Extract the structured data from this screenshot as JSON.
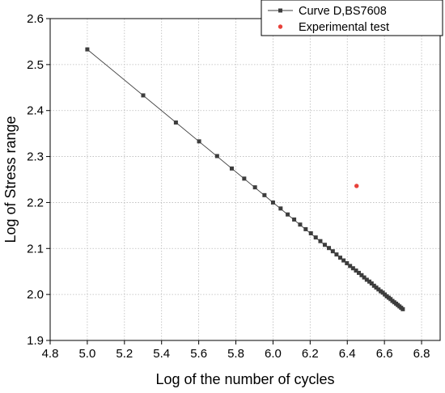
{
  "chart_data": {
    "type": "scatter",
    "xlabel": "Log of the number of cycles",
    "ylabel": "Log of Stress range",
    "xlim": [
      4.8,
      6.9
    ],
    "ylim": [
      1.9,
      2.6
    ],
    "xticks": [
      "4.8",
      "5.0",
      "5.2",
      "5.4",
      "5.6",
      "5.8",
      "6.0",
      "6.2",
      "6.4",
      "6.6",
      "6.8"
    ],
    "yticks": [
      "1.9",
      "2.0",
      "2.1",
      "2.2",
      "2.3",
      "2.4",
      "2.5",
      "2.6"
    ],
    "grid": true,
    "legend_position": "top-right",
    "series": [
      {
        "name": "Curve D,BS7608",
        "style": "line-with-square-markers",
        "color": "#3d3d3d",
        "line_from": [
          5.0,
          2.533
        ],
        "line_to": [
          6.7,
          1.967
        ],
        "x": [
          5.0,
          5.301,
          5.477,
          5.602,
          5.699,
          5.778,
          5.845,
          5.903,
          5.954,
          6.0,
          6.041,
          6.079,
          6.114,
          6.146,
          6.176,
          6.204,
          6.23,
          6.255,
          6.279,
          6.301,
          6.322,
          6.342,
          6.362,
          6.38,
          6.398,
          6.415,
          6.431,
          6.447,
          6.462,
          6.477,
          6.491,
          6.505,
          6.519,
          6.531,
          6.544,
          6.556,
          6.568,
          6.58,
          6.591,
          6.602,
          6.613,
          6.623,
          6.633,
          6.643,
          6.653,
          6.663,
          6.672,
          6.681,
          6.69,
          6.699
        ],
        "y": [
          2.533,
          2.433,
          2.374,
          2.333,
          2.301,
          2.274,
          2.252,
          2.233,
          2.216,
          2.2,
          2.187,
          2.174,
          2.163,
          2.152,
          2.142,
          2.133,
          2.124,
          2.116,
          2.108,
          2.101,
          2.094,
          2.087,
          2.08,
          2.074,
          2.068,
          2.062,
          2.057,
          2.052,
          2.047,
          2.042,
          2.037,
          2.032,
          2.028,
          2.024,
          2.019,
          2.015,
          2.011,
          2.007,
          2.004,
          2.0,
          1.996,
          1.993,
          1.99,
          1.986,
          1.983,
          1.98,
          1.977,
          1.974,
          1.971,
          1.968
        ]
      },
      {
        "name": "Experimental test",
        "style": "dot",
        "color": "#e8413a",
        "x": [
          6.45
        ],
        "y": [
          2.236
        ]
      }
    ]
  }
}
